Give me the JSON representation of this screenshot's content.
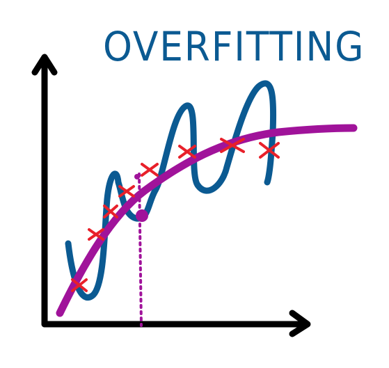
{
  "title": "OVERFITTING",
  "colors": {
    "axes": "#000000",
    "overfit_curve": "#0b5a92",
    "smooth_curve": "#a0139a",
    "data_points": "#e8202a",
    "guide_line": "#a0139a",
    "title": "#0b5a92"
  },
  "icons": [
    "y-axis-arrow-icon",
    "x-axis-arrow-icon"
  ]
}
